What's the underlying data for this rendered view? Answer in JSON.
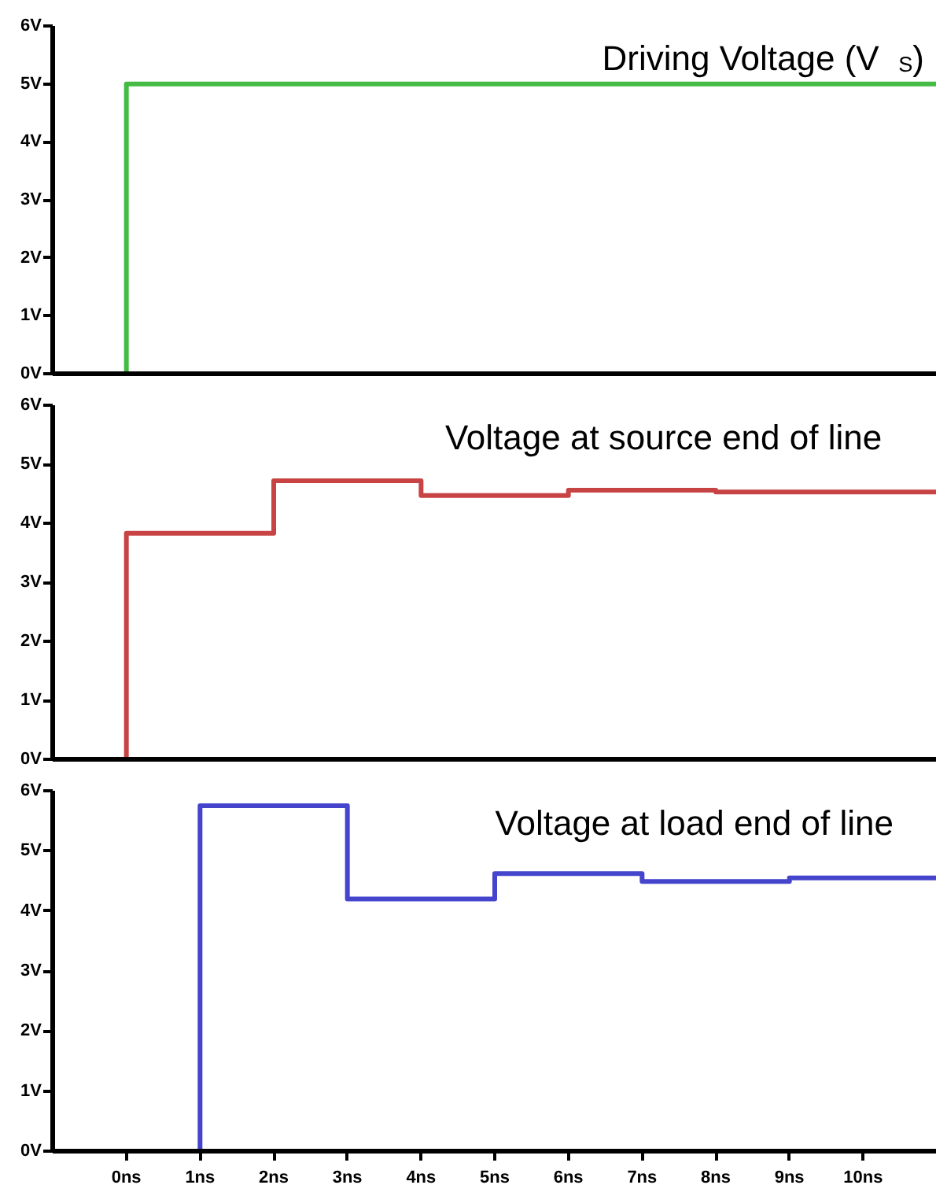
{
  "chart_data": [
    {
      "type": "step",
      "title": "Driving Voltage (V$_{S}$)",
      "x": [
        -1,
        0,
        11
      ],
      "values": [
        0,
        5,
        5
      ],
      "color": "#44bb44",
      "xlim": [
        -1,
        11
      ],
      "ylim": [
        0,
        6
      ],
      "yticks": [
        {
          "value": 0,
          "label": "0V"
        },
        {
          "value": 1,
          "label": "1V"
        },
        {
          "value": 2,
          "label": "2V"
        },
        {
          "value": 3,
          "label": "3V"
        },
        {
          "value": 4,
          "label": "4V"
        },
        {
          "value": 5,
          "label": "5V"
        },
        {
          "value": 6,
          "label": "6V"
        }
      ],
      "tick_labels": "y",
      "grid": false
    },
    {
      "type": "step",
      "title": "Voltage at source end of line",
      "x": [
        -1,
        0,
        2,
        4,
        6,
        8,
        11
      ],
      "values": [
        0,
        3.83,
        4.72,
        4.47,
        4.56,
        4.53,
        4.53
      ],
      "color": "#c84444",
      "xlim": [
        -1,
        11
      ],
      "ylim": [
        0,
        6
      ],
      "yticks": [
        {
          "value": 0,
          "label": "0V"
        },
        {
          "value": 1,
          "label": "1V"
        },
        {
          "value": 2,
          "label": "2V"
        },
        {
          "value": 3,
          "label": "3V"
        },
        {
          "value": 4,
          "label": "4V"
        },
        {
          "value": 5,
          "label": "5V"
        },
        {
          "value": 6,
          "label": "6V"
        }
      ],
      "tick_labels": "y",
      "grid": false
    },
    {
      "type": "step",
      "title": "Voltage at load end of line",
      "x": [
        -1,
        1,
        3,
        5,
        7,
        9,
        11
      ],
      "values": [
        0,
        5.75,
        4.2,
        4.62,
        4.49,
        4.55,
        4.55
      ],
      "color": "#4444cc",
      "xlim": [
        -1,
        11
      ],
      "ylim": [
        0,
        6
      ],
      "yticks": [
        {
          "value": 0,
          "label": "0V"
        },
        {
          "value": 1,
          "label": "1V"
        },
        {
          "value": 2,
          "label": "2V"
        },
        {
          "value": 3,
          "label": "3V"
        },
        {
          "value": 4,
          "label": "4V"
        },
        {
          "value": 5,
          "label": "5V"
        },
        {
          "value": 6,
          "label": "6V"
        }
      ],
      "xticks": [
        {
          "value": 0,
          "label": "0ns"
        },
        {
          "value": 1,
          "label": "1ns"
        },
        {
          "value": 2,
          "label": "2ns"
        },
        {
          "value": 3,
          "label": "3ns"
        },
        {
          "value": 4,
          "label": "4ns"
        },
        {
          "value": 5,
          "label": "5ns"
        },
        {
          "value": 6,
          "label": "6ns"
        },
        {
          "value": 7,
          "label": "7ns"
        },
        {
          "value": 8,
          "label": "8ns"
        },
        {
          "value": 9,
          "label": "9ns"
        },
        {
          "value": 10,
          "label": "10ns"
        }
      ],
      "grid": false
    }
  ]
}
